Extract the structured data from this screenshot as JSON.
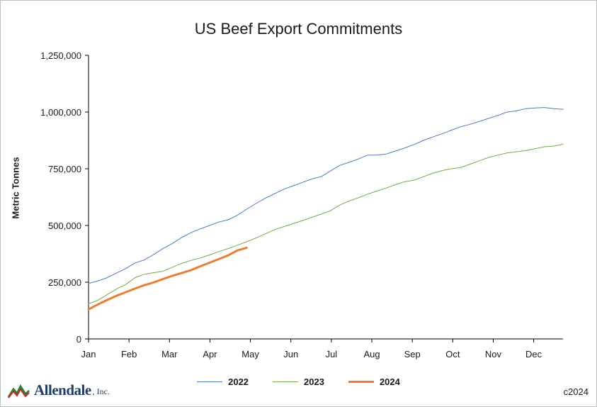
{
  "chart_data": {
    "type": "line",
    "title": "US Beef Export Commitments",
    "ylabel": "Metric Tonnes",
    "xlabel": "",
    "ylim": [
      0,
      1250000
    ],
    "yticks": [
      0,
      250000,
      500000,
      750000,
      1000000,
      1250000
    ],
    "ytick_labels": [
      "0",
      "250,000",
      "500,000",
      "750,000",
      "1,000,000",
      "1,250,000"
    ],
    "x_unit": "week of marketing year",
    "xlim": [
      0,
      51
    ],
    "x_ticks": [
      0,
      4.35,
      8.7,
      13.05,
      17.4,
      21.75,
      26.1,
      30.45,
      34.8,
      39.15,
      43.5,
      47.85
    ],
    "x_tick_labels": [
      "Jan",
      "Feb",
      "Mar",
      "Apr",
      "May",
      "Jun",
      "Jul",
      "Aug",
      "Sep",
      "Oct",
      "Nov",
      "Dec"
    ],
    "grid": false,
    "legend_position": "bottom",
    "series": [
      {
        "name": "2022",
        "color": "#4a7bc8",
        "width": 1,
        "values": [
          245000,
          255000,
          270000,
          290000,
          310000,
          335000,
          348000,
          372000,
          398000,
          420000,
          447000,
          468000,
          485000,
          500000,
          515000,
          525000,
          545000,
          572000,
          597000,
          620000,
          640000,
          660000,
          675000,
          690000,
          705000,
          715000,
          740000,
          765000,
          778000,
          793000,
          810000,
          810000,
          815000,
          828000,
          842000,
          857000,
          875000,
          890000,
          904000,
          920000,
          935000,
          946000,
          958000,
          972000,
          985000,
          1000000,
          1005000,
          1015000,
          1018000,
          1020000,
          1015000,
          1012000
        ]
      },
      {
        "name": "2023",
        "color": "#70ad47",
        "width": 1,
        "values": [
          155000,
          170000,
          195000,
          220000,
          240000,
          270000,
          285000,
          292000,
          298000,
          316000,
          333000,
          346000,
          357000,
          370000,
          385000,
          398000,
          413000,
          428000,
          445000,
          463000,
          482000,
          495000,
          508000,
          522000,
          536000,
          550000,
          565000,
          590000,
          608000,
          622000,
          638000,
          652000,
          665000,
          680000,
          693000,
          700000,
          715000,
          730000,
          742000,
          750000,
          755000,
          770000,
          785000,
          800000,
          810000,
          820000,
          825000,
          830000,
          838000,
          847000,
          850000,
          858000
        ]
      },
      {
        "name": "2024",
        "color": "#ed7d31",
        "width": 3,
        "values": [
          130000,
          152000,
          172000,
          190000,
          206000,
          222000,
          237000,
          249000,
          264000,
          278000,
          290000,
          303000,
          320000,
          336000,
          352000,
          368000,
          390000,
          402000
        ]
      }
    ]
  },
  "footer": {
    "logo_text": "Allendale",
    "logo_suffix": ", Inc.",
    "copyright": "c2024"
  }
}
